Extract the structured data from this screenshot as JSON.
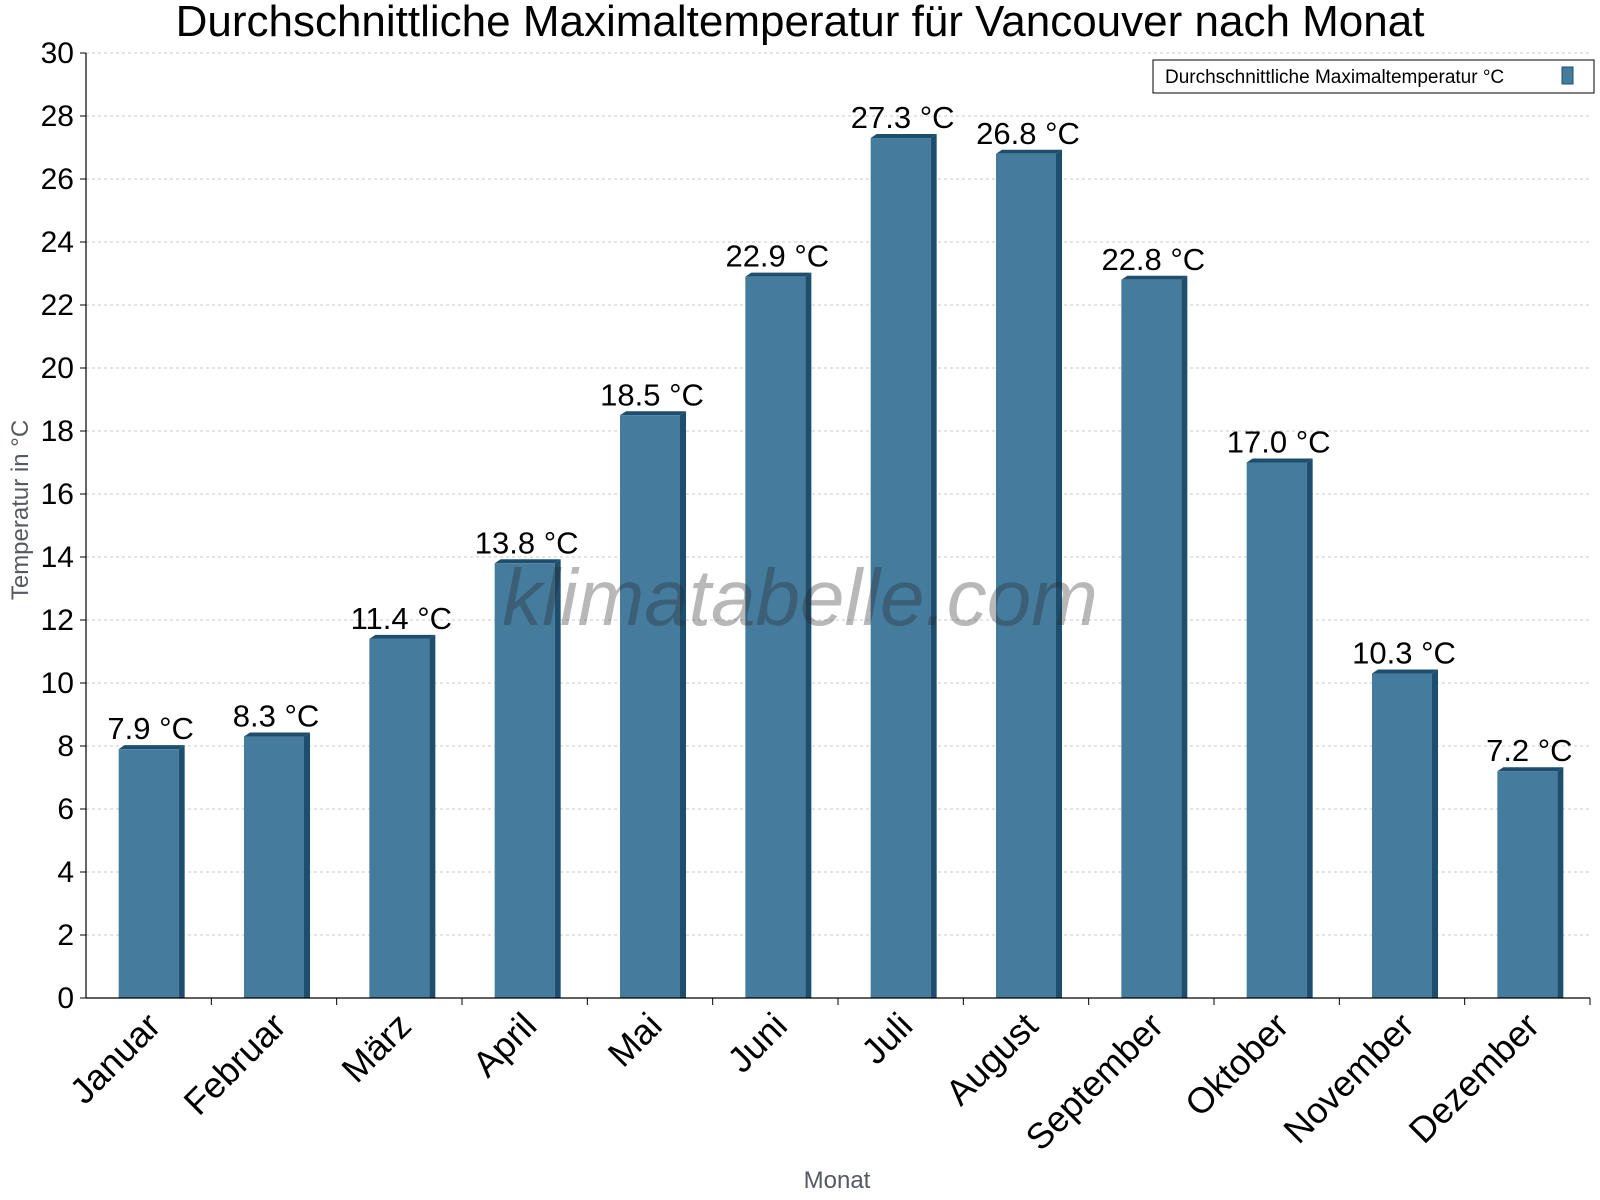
{
  "chart_data": {
    "type": "bar",
    "title": "Durchschnittliche Maximaltemperatur für Vancouver nach Monat",
    "xlabel": "Monat",
    "ylabel": "Temperatur in °C",
    "categories": [
      "Januar",
      "Februar",
      "März",
      "April",
      "Mai",
      "Juni",
      "Juli",
      "August",
      "September",
      "Oktober",
      "November",
      "Dezember"
    ],
    "series": [
      {
        "name": "Durchschnittliche Maximaltemperatur °C",
        "values": [
          7.9,
          8.3,
          11.4,
          13.8,
          18.5,
          22.9,
          27.3,
          26.8,
          22.8,
          17.0,
          10.3,
          7.2
        ],
        "labels": [
          "7.9 °C",
          "8.3 °C",
          "11.4 °C",
          "13.8 °C",
          "18.5 °C",
          "22.9 °C",
          "27.3 °C",
          "26.8 °C",
          "22.8 °C",
          "17.0 °C",
          "10.3 °C",
          "7.2 °C"
        ]
      }
    ],
    "ylim": [
      0,
      30
    ],
    "yticks": [
      "0",
      "2",
      "4",
      "6",
      "8",
      "10",
      "12",
      "14",
      "16",
      "18",
      "20",
      "22",
      "24",
      "26",
      "28",
      "30"
    ],
    "grid": true,
    "legend_position": "top-right",
    "colors": {
      "bar": "#457b9d",
      "bar_side": "#1d4e6e",
      "bar_top": "#1d4e6e",
      "grid": "#c8c8c8"
    }
  },
  "watermark": "klimatabelle.com"
}
